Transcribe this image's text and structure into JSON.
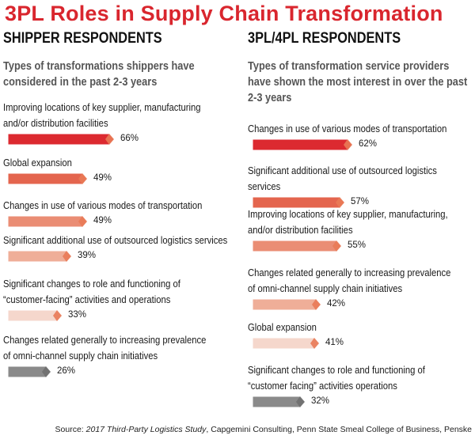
{
  "title": "3PL Roles in Supply Chain Transformation",
  "colors": {
    "title": "#d9262e",
    "bar_1": "#dc2a30",
    "bar_2": "#e4654e",
    "bar_3": "#ea8d74",
    "bar_4": "#efae98",
    "bar_5": "#f5d7cc",
    "bar_gray": "#8a8a8a"
  },
  "source": {
    "prefix": "Source: ",
    "study": "2017 Third-Party Logistics Study",
    "rest": ", Capgemini Consulting, Penn State Smeal College of Business, Penske"
  },
  "chart_data": [
    {
      "type": "bar",
      "orientation": "horizontal",
      "title": "SHIPPER RESPONDENTS",
      "subtitle": "Types of transformations shippers have considered in the past 2-3 years",
      "categories": [
        "Improving locations of key supplier, manufacturing and/or distribution facilities",
        "Global expansion",
        "Changes in use of various modes of transportation",
        "Significant additional use of outsourced logistics services",
        "Significant changes to role and functioning of “customer-facing” activities and operations",
        "Changes related generally to increasing prevalence of omni-channel supply chain initiatives"
      ],
      "values": [
        66,
        49,
        49,
        39,
        33,
        26
      ],
      "value_labels": [
        "66%",
        "49%",
        "49%",
        "39%",
        "33%",
        "26%"
      ],
      "bar_colors": [
        "#dc2a30",
        "#e4654e",
        "#ea8d74",
        "#efae98",
        "#f5d7cc",
        "#8a8a8a"
      ],
      "xlim": [
        0,
        100
      ]
    },
    {
      "type": "bar",
      "orientation": "horizontal",
      "title": "3PL/4PL RESPONDENTS",
      "subtitle": "Types of transformation service providers have shown the most interest in over the past 2-3 years",
      "categories": [
        "Changes in use of various modes of transportation",
        "Significant additional use of outsourced logistics services",
        "Improving locations of key supplier, manufacturing, and/or distribution facilities",
        "Changes related generally to increasing prevalence of omni-channel supply chain initiatives",
        "Global expansion",
        "Significant changes to role and functioning of “customer facing” activities operations"
      ],
      "values": [
        62,
        57,
        55,
        42,
        41,
        32
      ],
      "value_labels": [
        "62%",
        "57%",
        "55%",
        "42%",
        "41%",
        "32%"
      ],
      "bar_colors": [
        "#dc2a30",
        "#e4654e",
        "#ea8d74",
        "#efae98",
        "#f5d7cc",
        "#8a8a8a"
      ],
      "xlim": [
        0,
        100
      ]
    }
  ]
}
